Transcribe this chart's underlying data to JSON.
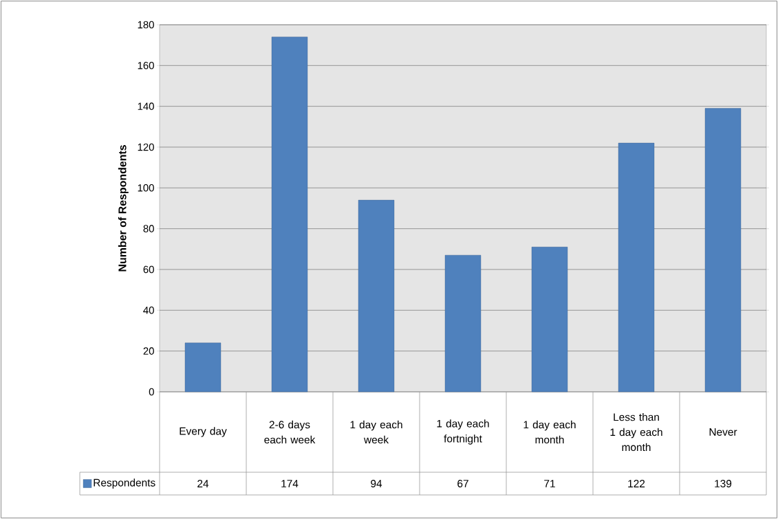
{
  "chart_data": {
    "type": "bar",
    "ylabel": "Number of Respondents",
    "categories": [
      "Every day",
      "2-6 days each week",
      "1 day each week",
      "1 day each fortnight",
      "1 day each month",
      "Less than 1 day each month",
      "Never"
    ],
    "series": [
      {
        "name": "Respondents",
        "color": "#4f81bd",
        "values": [
          24,
          174,
          94,
          67,
          71,
          122,
          139
        ]
      }
    ],
    "ylim": [
      0,
      180
    ],
    "yticks": [
      0,
      20,
      40,
      60,
      80,
      100,
      120,
      140,
      160,
      180
    ],
    "grid": "y",
    "legend": "bottom",
    "data_labels": true
  }
}
